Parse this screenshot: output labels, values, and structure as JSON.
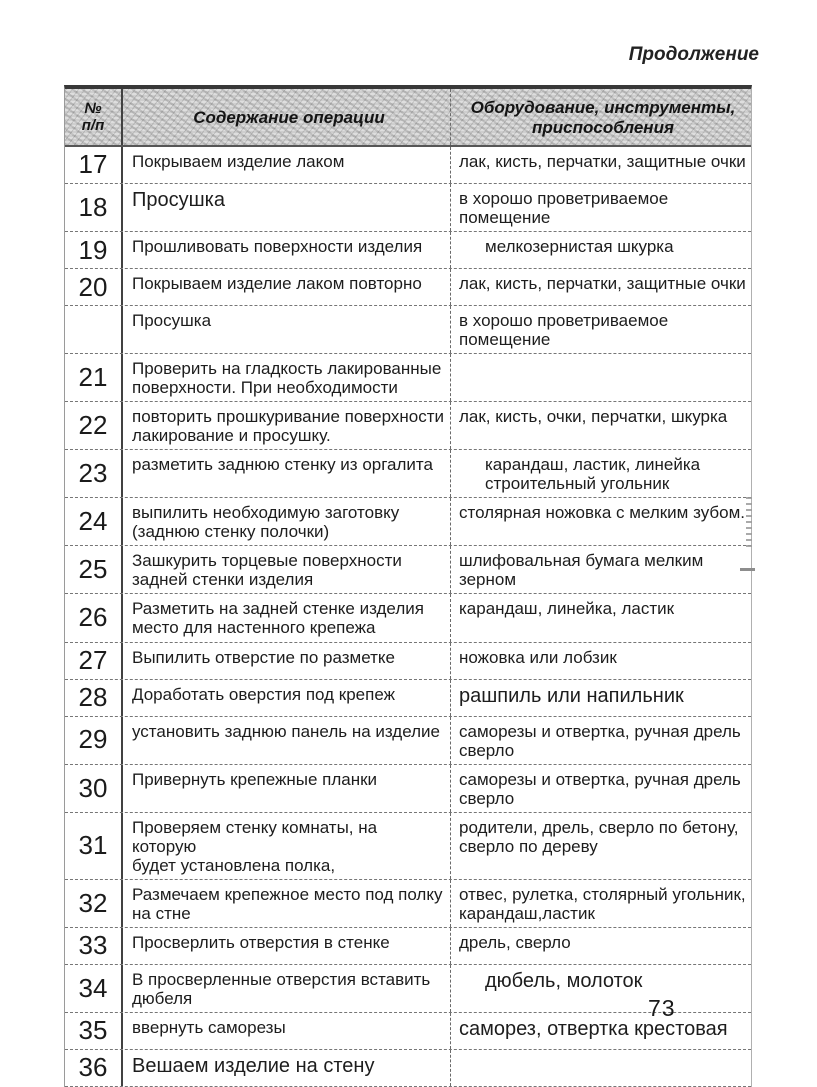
{
  "page": {
    "continuation_label": "Продолжение",
    "page_number": "73"
  },
  "table": {
    "header": {
      "num": "№\nп/п",
      "operation": "Содержание операции",
      "equipment": "Оборудование, инструменты,\nприспособления"
    },
    "rows": [
      {
        "num": "17",
        "operation": "Покрываем изделие лаком",
        "equipment": "лак, кисть, перчатки, защитные очки"
      },
      {
        "num": "18",
        "operation": "Просушка",
        "equipment": "в хорошо проветриваемое\nпомещение",
        "op_large": true
      },
      {
        "num": "19",
        "operation": "Прошливовать поверхности изделия",
        "equipment": "мелкозернистая шкурка",
        "eq_indent": true
      },
      {
        "num": "20",
        "operation": "Покрываем изделие лаком повторно",
        "equipment": "лак, кисть, перчатки, защитные очки"
      },
      {
        "num": "",
        "operation": "Просушка",
        "equipment": "в хорошо проветриваемое\nпомещение"
      },
      {
        "num": "21",
        "operation": "Проверить на гладкость лакированные\nповерхности. При необходимости",
        "equipment": ""
      },
      {
        "num": "22",
        "operation": "повторить прошкуривание поверхности\nлакирование и просушку.",
        "equipment": "лак, кисть, очки, перчатки, шкурка"
      },
      {
        "num": "23",
        "operation": "разметить заднюю стенку из оргалита",
        "equipment": "карандаш, ластик, линейка\nстроительный угольник",
        "eq_indent": true
      },
      {
        "num": "24",
        "operation": "выпилить необходимую заготовку\n(заднюю стенку полочки)",
        "equipment": "столярная ножовка с мелким зубом."
      },
      {
        "num": "25",
        "operation": "Зашкурить торцевые поверхности\nзадней стенки изделия",
        "equipment": "шлифовальная бумага мелким\nзерном"
      },
      {
        "num": "26",
        "operation": "Разметить на задней стенке изделия\nместо для настенного крепежа",
        "equipment": "карандаш, линейка, ластик"
      },
      {
        "num": "27",
        "operation": "Выпилить отверстие по разметке",
        "equipment": "ножовка  или лобзик"
      },
      {
        "num": "28",
        "operation": "Доработать оверстия под крепеж",
        "equipment": "рашпиль или напильник",
        "eq_large": true
      },
      {
        "num": "29",
        "operation": "установить заднюю панель на изделие",
        "equipment": "саморезы и отвертка, ручная дрель\nсверло"
      },
      {
        "num": "30",
        "operation": "Привернуть крепежные планки",
        "equipment": "саморезы и отвертка, ручная дрель\nсверло"
      },
      {
        "num": "31",
        "operation": "Проверяем стенку комнаты, на которую\nбудет установлена полка,",
        "equipment": "родители, дрель, сверло по бетону,\nсверло по дереву"
      },
      {
        "num": "32",
        "operation": "Размечаем крепежное место под полку\nна стне",
        "equipment": "отвес, рулетка, столярный угольник,\nкарандаш,ластик"
      },
      {
        "num": "33",
        "operation": "Просверлить отверстия в стенке",
        "equipment": "дрель, сверло"
      },
      {
        "num": "34",
        "operation": "В просверленные отверстия вставить\nдюбеля",
        "equipment": "дюбель, молоток",
        "eq_large": true,
        "eq_indent": true
      },
      {
        "num": "35",
        "operation": "ввернуть  саморезы",
        "equipment": "саморез, отвертка крестовая",
        "eq_large": true
      },
      {
        "num": "36",
        "operation": "Вешаем изделие на стену",
        "equipment": "",
        "op_large": true
      }
    ]
  }
}
